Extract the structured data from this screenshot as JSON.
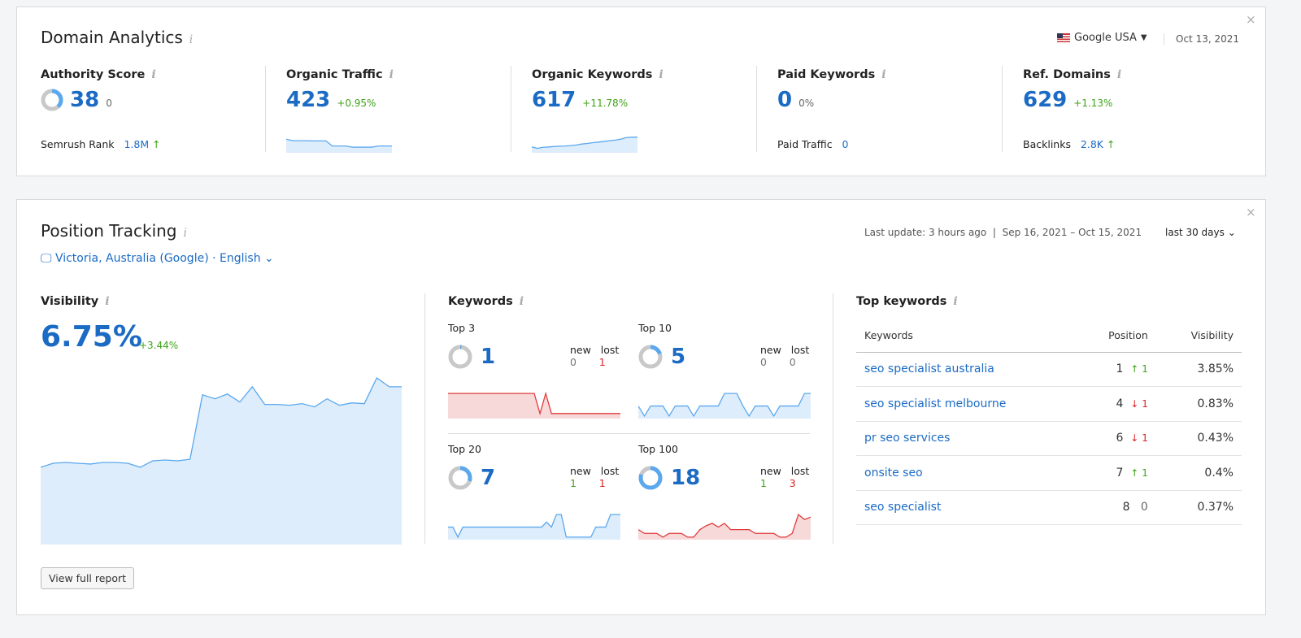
{
  "domain_analytics": {
    "title": "Domain Analytics",
    "database": "Google USA",
    "date": "Oct 13, 2021",
    "metrics": [
      {
        "label": "Authority Score",
        "value": "38",
        "change": "0",
        "sub_label": "Semrush Rank",
        "sub_value": "1.8M",
        "sub_arrow": "↑",
        "gauge": 0.38
      },
      {
        "label": "Organic Traffic",
        "value": "423",
        "change": "+0.95%",
        "spark": [
          70,
          62,
          62,
          62,
          61,
          61,
          61,
          35,
          35,
          35,
          29,
          29,
          29,
          29,
          35,
          35,
          35
        ]
      },
      {
        "label": "Organic Keywords",
        "value": "617",
        "change": "+11.78%",
        "spark": [
          30,
          23,
          28,
          30,
          32,
          34,
          35,
          37,
          40,
          45,
          48,
          52,
          55,
          58,
          62,
          65,
          70,
          78,
          80,
          80
        ]
      },
      {
        "label": "Paid Keywords",
        "value": "0",
        "change": "0%",
        "sub_label": "Paid Traffic",
        "sub_value": "0"
      },
      {
        "label": "Ref. Domains",
        "value": "629",
        "change": "+1.13%",
        "sub_label": "Backlinks",
        "sub_value": "2.8K",
        "sub_arrow": "↑"
      }
    ]
  },
  "position_tracking": {
    "title": "Position Tracking",
    "location": "Victoria, Australia (Google) · English",
    "last_update": "Last update: 3 hours ago",
    "range": "Sep 16, 2021 – Oct 15, 2021",
    "period": "last 30 days",
    "visibility": {
      "label": "Visibility",
      "value": "6.75%",
      "change": "+3.44%",
      "values": [
        96,
        101,
        102,
        101,
        100,
        102,
        102,
        101,
        96,
        104,
        105,
        104,
        106,
        186,
        181,
        187,
        177,
        196,
        174,
        174,
        173,
        175,
        171,
        181,
        173,
        176,
        175,
        207,
        196,
        196
      ],
      "ymax": 210
    },
    "keywords": {
      "label": "Keywords",
      "new_label": "new",
      "lost_label": "lost",
      "groups": [
        {
          "label": "Top 3",
          "value": "1",
          "new": "0",
          "lost": "1",
          "gauge": 0.02,
          "color": "#e03b3b",
          "fill": "#f7d9d9",
          "spark": [
            100,
            100,
            100,
            100,
            100,
            100,
            100,
            100,
            100,
            100,
            100,
            100,
            100,
            100,
            100,
            100,
            20,
            100,
            20,
            20,
            20,
            20,
            20,
            20,
            20,
            20,
            20,
            20,
            20,
            20,
            20
          ]
        },
        {
          "label": "Top 10",
          "value": "5",
          "new": "0",
          "lost": "0",
          "gauge": 0.2,
          "color": "#5ba8ee",
          "fill": "#deedfb",
          "spark": [
            50,
            10,
            50,
            50,
            50,
            10,
            50,
            50,
            50,
            10,
            50,
            50,
            50,
            50,
            100,
            100,
            100,
            50,
            10,
            50,
            50,
            50,
            10,
            50,
            50,
            50,
            50,
            100,
            100
          ]
        },
        {
          "label": "Top 20",
          "value": "7",
          "new": "1",
          "lost": "1",
          "gauge": 0.3,
          "color": "#5ba8ee",
          "fill": "#deedfb",
          "spark": [
            50,
            50,
            10,
            50,
            50,
            50,
            50,
            50,
            50,
            50,
            50,
            50,
            50,
            50,
            50,
            50,
            50,
            50,
            50,
            50,
            70,
            50,
            100,
            100,
            10,
            10,
            10,
            10,
            10,
            10,
            50,
            50,
            50,
            100,
            100,
            100
          ]
        },
        {
          "label": "Top 100",
          "value": "18",
          "new": "1",
          "lost": "3",
          "gauge": 0.8,
          "color": "#e03b3b",
          "fill": "#f7d9d9",
          "spark": [
            40,
            25,
            25,
            25,
            10,
            25,
            25,
            25,
            10,
            10,
            40,
            55,
            65,
            50,
            65,
            40,
            40,
            40,
            40,
            25,
            25,
            25,
            25,
            10,
            10,
            25,
            100,
            80,
            90
          ]
        }
      ]
    },
    "top_keywords": {
      "label": "Top keywords",
      "headers": [
        "Keywords",
        "Position",
        "Visibility"
      ],
      "rows": [
        {
          "keyword": "seo specialist australia",
          "position": "1",
          "arrow": "↑",
          "diff": "1",
          "dir": "up",
          "visibility": "3.85%"
        },
        {
          "keyword": "seo specialist melbourne",
          "position": "4",
          "arrow": "↓",
          "diff": "1",
          "dir": "down",
          "visibility": "0.83%"
        },
        {
          "keyword": "pr seo services",
          "position": "6",
          "arrow": "↓",
          "diff": "1",
          "dir": "down",
          "visibility": "0.43%"
        },
        {
          "keyword": "onsite seo",
          "position": "7",
          "arrow": "↑",
          "diff": "1",
          "dir": "up",
          "visibility": "0.4%"
        },
        {
          "keyword": "seo specialist",
          "position": "8",
          "arrow": "",
          "diff": "0",
          "dir": "none",
          "visibility": "0.37%"
        }
      ]
    },
    "button": "View full report"
  }
}
